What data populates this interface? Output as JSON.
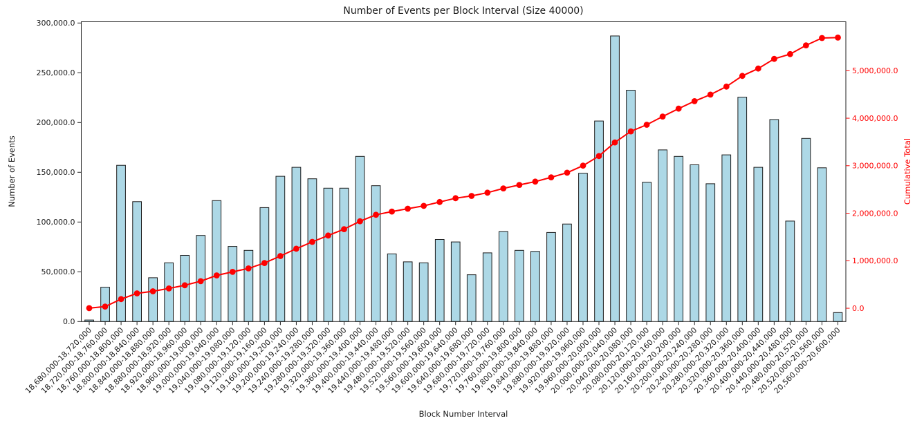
{
  "chart_data": {
    "type": "bar",
    "title": "Number of Events per Block Interval (Size 40000)",
    "xlabel": "Block Number Interval",
    "ylabel_left": "Number of Events",
    "ylabel_right": "Cumulative Total",
    "bin_size": 40000,
    "bin_start": 18680000,
    "bin_end": 20600000,
    "legend_position": "none",
    "grid": false,
    "colors": {
      "bar_fill": "#ADD8E6",
      "bar_edge": "#1a1a1a",
      "line": "#ff0000",
      "right_axis_text": "#ff0000",
      "left_axis_text": "#1a1a1a",
      "spine": "#222222"
    },
    "categories": [
      "18,680,000-18,720,000",
      "18,720,000-18,760,000",
      "18,760,000-18,800,000",
      "18,800,000-18,840,000",
      "18,840,000-18,880,000",
      "18,880,000-18,920,000",
      "18,920,000-18,960,000",
      "18,960,000-19,000,000",
      "19,000,000-19,040,000",
      "19,040,000-19,080,000",
      "19,080,000-19,120,000",
      "19,120,000-19,160,000",
      "19,160,000-19,200,000",
      "19,200,000-19,240,000",
      "19,240,000-19,280,000",
      "19,280,000-19,320,000",
      "19,320,000-19,360,000",
      "19,360,000-19,400,000",
      "19,400,000-19,440,000",
      "19,440,000-19,480,000",
      "19,480,000-19,520,000",
      "19,520,000-19,560,000",
      "19,560,000-19,600,000",
      "19,600,000-19,640,000",
      "19,640,000-19,680,000",
      "19,680,000-19,720,000",
      "19,720,000-19,760,000",
      "19,760,000-19,800,000",
      "19,800,000-19,840,000",
      "19,840,000-19,880,000",
      "19,880,000-19,920,000",
      "19,920,000-19,960,000",
      "19,960,000-20,000,000",
      "20,000,000-20,040,000",
      "20,040,000-20,080,000",
      "20,080,000-20,120,000",
      "20,120,000-20,160,000",
      "20,160,000-20,200,000",
      "20,200,000-20,240,000",
      "20,240,000-20,280,000",
      "20,280,000-20,320,000",
      "20,320,000-20,360,000",
      "20,360,000-20,400,000",
      "20,400,000-20,440,000",
      "20,440,000-20,480,000",
      "20,480,000-20,520,000",
      "20,520,000-20,560,000",
      "20,560,000-20,600,000"
    ],
    "series": [
      {
        "name": "Number of Events",
        "type": "bar",
        "axis": "left",
        "values": [
          1500,
          34500,
          157000,
          120500,
          44000,
          59000,
          66500,
          86500,
          121500,
          75500,
          71500,
          114500,
          146000,
          155000,
          143500,
          134000,
          134000,
          166000,
          136500,
          68000,
          60000,
          59000,
          82500,
          80000,
          47000,
          69000,
          90500,
          71500,
          70500,
          89500,
          98000,
          149000,
          201500,
          287000,
          232500,
          140000,
          172500,
          166000,
          157500,
          138500,
          167500,
          225500,
          155000,
          203000,
          101000,
          184000,
          154500,
          9000
        ]
      },
      {
        "name": "Cumulative Total",
        "type": "line",
        "axis": "right",
        "marker": "circle",
        "values": [
          1500,
          36000,
          193000,
          313500,
          357500,
          416500,
          483000,
          569500,
          691000,
          766500,
          838000,
          952500,
          1098500,
          1253500,
          1397000,
          1531000,
          1665000,
          1831000,
          1967500,
          2035500,
          2095500,
          2154500,
          2237000,
          2317000,
          2364000,
          2433000,
          2523500,
          2595000,
          2665500,
          2755000,
          2853000,
          3002000,
          3203500,
          3490500,
          3723000,
          3863000,
          4035500,
          4201500,
          4359000,
          4497500,
          4665000,
          4890500,
          5045500,
          5248500,
          5349500,
          5533500,
          5688000,
          5697000
        ]
      }
    ],
    "yticks_left": [
      0,
      50000,
      100000,
      150000,
      200000,
      250000,
      300000
    ],
    "yticks_right": [
      0,
      1000000,
      2000000,
      3000000,
      4000000,
      5000000
    ],
    "ylim_left": [
      0,
      300000
    ],
    "ylim_right": [
      -280000,
      6030000
    ],
    "tick_format": "thousands-comma-one-decimal"
  }
}
